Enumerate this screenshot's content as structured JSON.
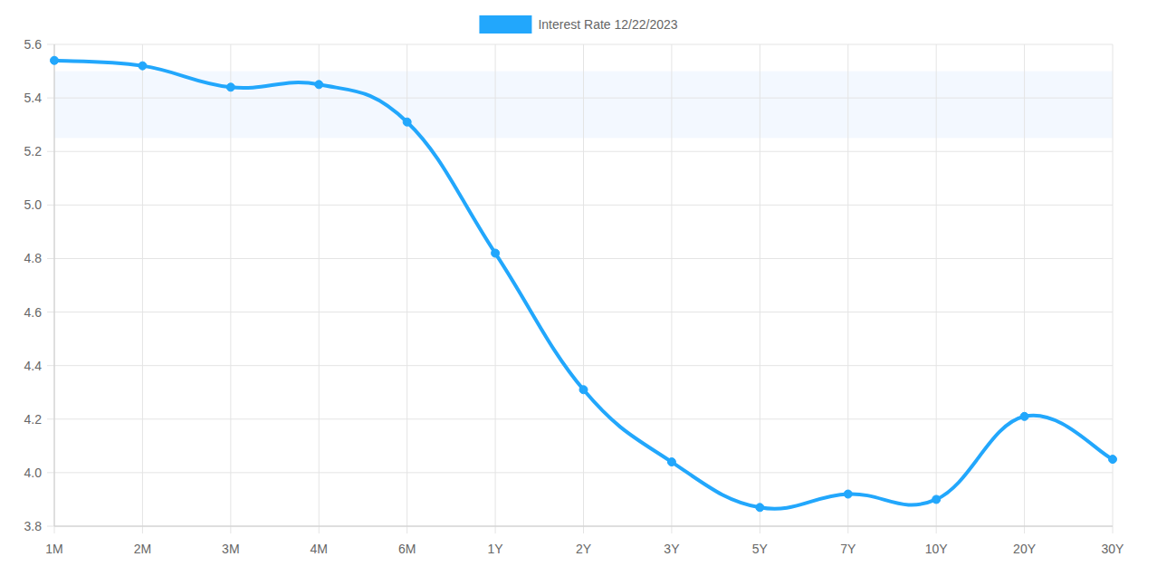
{
  "chart_data": {
    "type": "line",
    "categories": [
      "1M",
      "2M",
      "3M",
      "4M",
      "6M",
      "1Y",
      "2Y",
      "3Y",
      "5Y",
      "7Y",
      "10Y",
      "20Y",
      "30Y"
    ],
    "series": [
      {
        "name": "Interest Rate 12/22/2023",
        "color": "#22a7fc",
        "marker": "circle",
        "line_style": "solid",
        "values": [
          5.54,
          5.52,
          5.44,
          5.45,
          5.31,
          4.82,
          4.31,
          4.04,
          3.87,
          3.92,
          3.9,
          4.21,
          4.05
        ]
      }
    ],
    "band": [
      5.25,
      5.5
    ],
    "ylim": [
      3.8,
      5.6
    ],
    "yticks": [
      3.8,
      {
        "value": 4,
        "label": "4.0"
      },
      4.2,
      4.4,
      4.6,
      4.8,
      {
        "value": 5,
        "label": "5.0"
      },
      5.2,
      5.4,
      5.6
    ],
    "grid": true,
    "legend": "top"
  }
}
